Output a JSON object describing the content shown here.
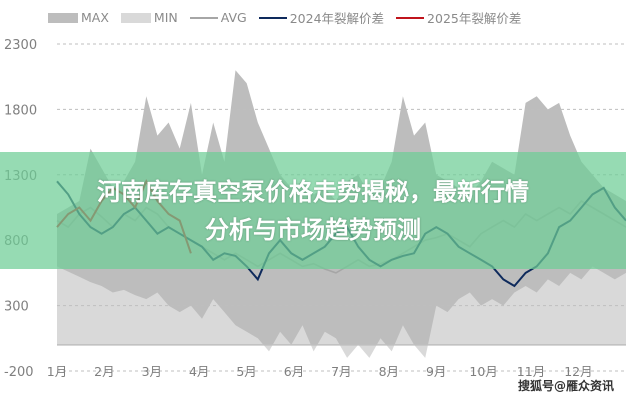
{
  "chart_data": {
    "type": "area+line",
    "title": "",
    "xlabel": "",
    "ylabel": "",
    "ylim": [
      -200,
      2300
    ],
    "yticks": [
      2300,
      1800,
      1300,
      800,
      300,
      -200
    ],
    "xticks": [
      "1月",
      "2月",
      "3月",
      "4月",
      "5月",
      "6月",
      "7月",
      "8月",
      "9月",
      "10月",
      "11月",
      "12月"
    ],
    "grid": true,
    "legend_position": "top",
    "series": [
      {
        "name": "MAX",
        "kind": "area",
        "color": "#bdbdbd",
        "values": [
          1000,
          1050,
          1100,
          1500,
          1350,
          1200,
          1250,
          1400,
          1900,
          1600,
          1700,
          1500,
          1850,
          1300,
          1700,
          1400,
          2100,
          2000,
          1700,
          1500,
          1300,
          1200,
          1250,
          1150,
          1200,
          1100,
          1250,
          1300,
          1150,
          1200,
          1400,
          1900,
          1600,
          1700,
          1300,
          1250,
          1200,
          1150,
          1250,
          1400,
          1350,
          1300,
          1850,
          1900,
          1800,
          1850,
          1600,
          1400,
          1300,
          1200,
          1150,
          1100
        ]
      },
      {
        "name": "MIN",
        "kind": "area",
        "color": "#d9d9d9",
        "values": [
          600,
          560,
          520,
          480,
          450,
          400,
          420,
          380,
          350,
          400,
          300,
          250,
          300,
          200,
          350,
          250,
          150,
          100,
          50,
          -50,
          100,
          0,
          150,
          -50,
          100,
          50,
          -100,
          0,
          -100,
          50,
          -50,
          150,
          0,
          -100,
          300,
          250,
          350,
          400,
          300,
          350,
          300,
          400,
          450,
          400,
          500,
          450,
          550,
          500,
          600,
          550,
          500,
          550
        ]
      },
      {
        "name": "AVG",
        "kind": "line",
        "color": "#a6a6a6",
        "values": [
          950,
          900,
          1000,
          1050,
          980,
          900,
          1000,
          950,
          1050,
          1000,
          900,
          850,
          800,
          750,
          700,
          650,
          700,
          650,
          600,
          650,
          700,
          650,
          600,
          620,
          580,
          550,
          600,
          650,
          600,
          620,
          650,
          700,
          750,
          800,
          820,
          850,
          800,
          750,
          850,
          900,
          950,
          900,
          1000,
          950,
          1000,
          1050,
          1000,
          1100,
          1050,
          1000,
          950,
          900
        ]
      },
      {
        "name": "2024年裂解价差",
        "kind": "line",
        "color": "#0e2a5c",
        "values": [
          1250,
          1150,
          1000,
          900,
          850,
          900,
          1000,
          1050,
          950,
          850,
          900,
          850,
          800,
          750,
          650,
          700,
          680,
          600,
          500,
          700,
          800,
          700,
          650,
          700,
          750,
          850,
          900,
          750,
          650,
          600,
          650,
          680,
          700,
          850,
          900,
          850,
          750,
          700,
          650,
          600,
          500,
          450,
          550,
          600,
          700,
          900,
          950,
          1050,
          1150,
          1200,
          1050,
          950
        ]
      },
      {
        "name": "2025年裂解价差",
        "kind": "line",
        "color": "#c0141c",
        "values": [
          900,
          1000,
          1050,
          950,
          1100,
          1200,
          1150,
          1050,
          1250,
          1100,
          1000,
          950,
          700
        ]
      }
    ]
  },
  "banner": {
    "line1": "河南库存真空泵价格走势揭秘，最新行情",
    "line2": "分析与市场趋势预测"
  },
  "watermark": "搜狐号@雁众资讯"
}
